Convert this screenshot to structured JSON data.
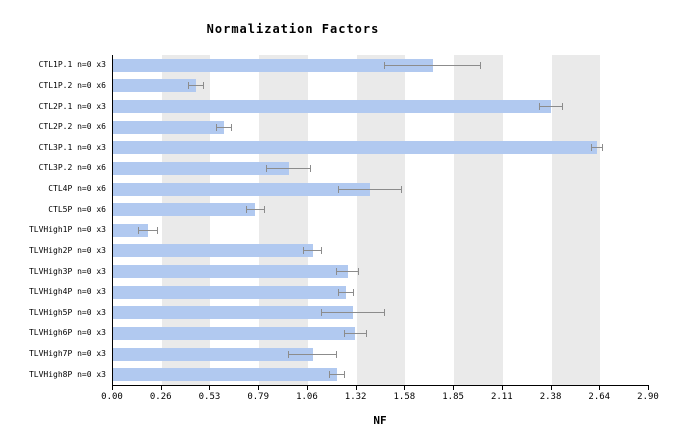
{
  "chart_data": {
    "type": "bar",
    "orientation": "horizontal",
    "title": "Normalization Factors",
    "xlabel": "NF",
    "xlim": [
      0,
      2.9
    ],
    "xtick_labels": [
      "0.00",
      "0.26",
      "0.53",
      "0.79",
      "1.06",
      "1.32",
      "1.58",
      "1.85",
      "2.11",
      "2.38",
      "2.64",
      "2.90"
    ],
    "grid": "alternating vertical gray bands",
    "legend": "none",
    "categories": [
      "CTL1P.1 n=0 x3",
      "CTL1P.2 n=0 x6",
      "CTL2P.1 n=0 x3",
      "CTL2P.2 n=0 x6",
      "CTL3P.1 n=0 x3",
      "CTL3P.2 n=0 x6",
      "CTL4P n=0 x6",
      "CTL5P n=0 x6",
      "TLVHigh1P n=0 x3",
      "TLVHigh2P n=0 x3",
      "TLVHigh3P n=0 x3",
      "TLVHigh4P n=0 x3",
      "TLVHigh5P n=0 x3",
      "TLVHigh6P n=0 x3",
      "TLVHigh7P n=0 x3",
      "TLVHigh8P n=0 x3"
    ],
    "values": [
      1.73,
      0.45,
      2.37,
      0.6,
      2.62,
      0.95,
      1.39,
      0.77,
      0.19,
      1.08,
      1.27,
      1.26,
      1.3,
      1.31,
      1.08,
      1.21
    ],
    "errors": [
      0.26,
      0.04,
      0.06,
      0.04,
      0.03,
      0.12,
      0.17,
      0.05,
      0.05,
      0.05,
      0.06,
      0.04,
      0.17,
      0.06,
      0.13,
      0.04
    ],
    "bar_color": "#b1c9f0",
    "error_color": "#8c8c8c",
    "band_color": "#eaeaea"
  }
}
